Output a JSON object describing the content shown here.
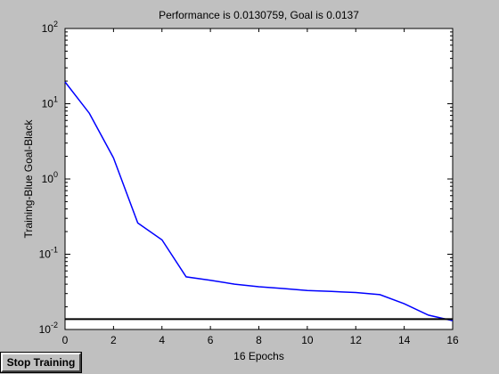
{
  "chart_data": {
    "type": "line",
    "title": "Performance is 0.0130759, Goal is 0.0137",
    "xlabel": "16 Epochs",
    "ylabel": "Training-Blue  Goal-Black",
    "xlim": [
      0,
      16
    ],
    "ylim": [
      0.01,
      100
    ],
    "yscale": "log",
    "grid": false,
    "x_ticks": [
      "0",
      "2",
      "4",
      "6",
      "8",
      "10",
      "12",
      "14",
      "16"
    ],
    "y_ticks": [
      {
        "value": 0.01,
        "base": "10",
        "exp": "-2"
      },
      {
        "value": 0.1,
        "base": "10",
        "exp": "-1"
      },
      {
        "value": 1,
        "base": "10",
        "exp": "0"
      },
      {
        "value": 10,
        "base": "10",
        "exp": "1"
      },
      {
        "value": 100,
        "base": "10",
        "exp": "2"
      }
    ],
    "series": [
      {
        "color": "#0000ff",
        "x": [
          0,
          1,
          2,
          3,
          4,
          5,
          6,
          7,
          8,
          9,
          10,
          11,
          12,
          13,
          14,
          15,
          16
        ],
        "y": [
          19.5,
          7.5,
          1.9,
          0.26,
          0.155,
          0.05,
          0.045,
          0.04,
          0.037,
          0.035,
          0.033,
          0.032,
          0.031,
          0.029,
          0.022,
          0.0155,
          0.0131
        ]
      },
      {
        "color": "#000000",
        "x": [
          0,
          16
        ],
        "y": [
          0.0137,
          0.0137
        ]
      }
    ]
  },
  "controls": {
    "stop_label": "Stop Training"
  }
}
